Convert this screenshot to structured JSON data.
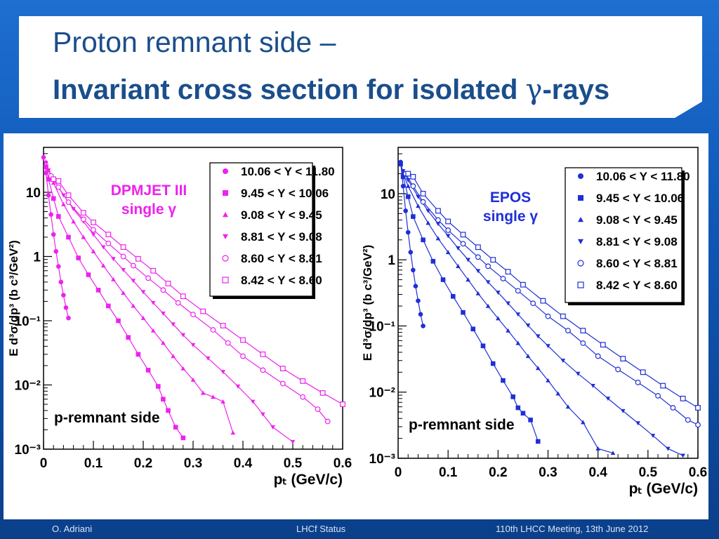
{
  "slide": {
    "title_line1": "Proton remnant side –",
    "title_line2_prefix": "Invariant cross section for isolated ",
    "title_line2_symbol": "γ",
    "title_line2_suffix": "-rays"
  },
  "footer": {
    "author": "O. Adriani",
    "center": "LHCf Status",
    "right": "110th LHCC Meeting, 13th June 2012"
  },
  "chart_data": [
    {
      "type": "scatter",
      "model_label": "DPMJET III",
      "model_sub": "single γ",
      "color": "#ee22ee",
      "annotation": "p-remnant side",
      "ylabel": "E d³σ/dp³ (b c³/GeV²)",
      "xlabel": "pₜ (GeV/c)",
      "xlim": [
        0,
        0.6
      ],
      "ylim": [
        0.001,
        50
      ],
      "yscale": "log",
      "x_ticks": [
        "0",
        "0.1",
        "0.2",
        "0.3",
        "0.4",
        "0.5",
        "0.6"
      ],
      "y_ticks": [
        "10⁻³",
        "10⁻²",
        "10⁻¹",
        "1",
        "10"
      ],
      "legend": [
        "10.06 < Y < 11.80",
        "9.45 < Y < 10.06",
        "9.08 < Y < 9.45",
        "8.81 < Y < 9.08",
        "8.60 < Y < 8.81",
        "8.42 < Y < 8.60"
      ],
      "series": [
        {
          "name": "10.06 < Y < 11.80",
          "marker": "circle",
          "x": [
            0.0,
            0.005,
            0.01,
            0.015,
            0.02,
            0.025,
            0.03,
            0.035,
            0.04,
            0.045,
            0.05
          ],
          "y": [
            35,
            20,
            9,
            4.5,
            2.2,
            1.2,
            0.7,
            0.4,
            0.25,
            0.16,
            0.11
          ]
        },
        {
          "name": "9.45 < Y < 10.06",
          "marker": "square",
          "x": [
            0.005,
            0.01,
            0.02,
            0.03,
            0.05,
            0.07,
            0.09,
            0.11,
            0.13,
            0.15,
            0.17,
            0.19,
            0.21,
            0.23,
            0.24,
            0.25,
            0.265,
            0.28
          ],
          "y": [
            25,
            16,
            8,
            4.2,
            2.0,
            0.95,
            0.52,
            0.3,
            0.17,
            0.1,
            0.055,
            0.03,
            0.017,
            0.0095,
            0.006,
            0.004,
            0.0022,
            0.0015
          ]
        },
        {
          "name": "9.08 < Y < 9.45",
          "marker": "triangle-up",
          "x": [
            0.005,
            0.01,
            0.02,
            0.04,
            0.06,
            0.08,
            0.1,
            0.12,
            0.14,
            0.16,
            0.18,
            0.2,
            0.22,
            0.24,
            0.26,
            0.28,
            0.3,
            0.32,
            0.34,
            0.36,
            0.38
          ],
          "y": [
            30,
            22,
            14,
            6.5,
            3.5,
            2.0,
            1.2,
            0.72,
            0.44,
            0.27,
            0.17,
            0.11,
            0.07,
            0.045,
            0.028,
            0.018,
            0.012,
            0.0075,
            0.0065,
            0.0055,
            0.0018
          ]
        },
        {
          "name": "8.81 < Y < 9.08",
          "marker": "triangle-down",
          "x": [
            0.01,
            0.02,
            0.04,
            0.06,
            0.08,
            0.1,
            0.12,
            0.14,
            0.16,
            0.18,
            0.2,
            0.22,
            0.24,
            0.26,
            0.28,
            0.3,
            0.33,
            0.36,
            0.39,
            0.42,
            0.44,
            0.46,
            0.5
          ],
          "y": [
            22,
            16,
            9,
            5.5,
            3.5,
            2.2,
            1.4,
            0.92,
            0.62,
            0.42,
            0.28,
            0.19,
            0.13,
            0.088,
            0.06,
            0.042,
            0.026,
            0.016,
            0.0095,
            0.0055,
            0.0035,
            0.0022,
            0.0013
          ]
        },
        {
          "name": "8.60 < Y < 8.81",
          "marker": "circle-open",
          "x": [
            0.015,
            0.03,
            0.05,
            0.08,
            0.1,
            0.13,
            0.16,
            0.18,
            0.21,
            0.24,
            0.27,
            0.3,
            0.34,
            0.37,
            0.4,
            0.44,
            0.48,
            0.52,
            0.55,
            0.57
          ],
          "y": [
            18,
            12,
            7,
            3.8,
            2.6,
            1.6,
            1.0,
            0.72,
            0.46,
            0.3,
            0.19,
            0.125,
            0.072,
            0.045,
            0.028,
            0.017,
            0.0105,
            0.0065,
            0.0042,
            0.0027
          ]
        },
        {
          "name": "8.42 < Y < 8.60",
          "marker": "square-open",
          "x": [
            0.02,
            0.03,
            0.05,
            0.08,
            0.1,
            0.13,
            0.16,
            0.19,
            0.22,
            0.25,
            0.28,
            0.32,
            0.36,
            0.4,
            0.44,
            0.48,
            0.52,
            0.56,
            0.6
          ],
          "y": [
            16,
            15,
            9,
            4.8,
            3.4,
            2.2,
            1.4,
            0.92,
            0.6,
            0.38,
            0.24,
            0.14,
            0.084,
            0.05,
            0.03,
            0.018,
            0.0115,
            0.0075,
            0.005
          ]
        }
      ]
    },
    {
      "type": "scatter",
      "model_label": "EPOS",
      "model_sub": "single γ",
      "color": "#1f2fd6",
      "annotation": "p-remnant side",
      "ylabel": "E d³σ/dp³ (b c³/GeV²)",
      "xlabel": "pₜ (GeV/c)",
      "xlim": [
        0,
        0.6
      ],
      "ylim": [
        0.001,
        50
      ],
      "yscale": "log",
      "x_ticks": [
        "0",
        "0.1",
        "0.2",
        "0.3",
        "0.4",
        "0.5",
        "0.6"
      ],
      "y_ticks": [
        "10⁻³",
        "10⁻²",
        "10⁻¹",
        "1",
        "10"
      ],
      "legend": [
        "10.06 < Y < 11.80",
        "9.45 < Y < 10.06",
        "9.08 < Y < 9.45",
        "8.81 < Y < 9.08",
        "8.60 < Y < 8.81",
        "8.42 < Y < 8.60"
      ],
      "series": [
        {
          "name": "10.06 < Y < 11.80",
          "marker": "circle",
          "x": [
            0.005,
            0.01,
            0.015,
            0.02,
            0.025,
            0.03,
            0.035,
            0.04,
            0.045,
            0.05
          ],
          "y": [
            30,
            13,
            5.5,
            2.6,
            1.3,
            0.7,
            0.4,
            0.24,
            0.15,
            0.1
          ]
        },
        {
          "name": "9.45 < Y < 10.06",
          "marker": "square",
          "x": [
            0.005,
            0.01,
            0.02,
            0.03,
            0.05,
            0.07,
            0.09,
            0.11,
            0.13,
            0.15,
            0.17,
            0.19,
            0.21,
            0.23,
            0.24,
            0.25,
            0.265,
            0.28
          ],
          "y": [
            28,
            18,
            9,
            4.5,
            2.0,
            0.95,
            0.5,
            0.28,
            0.16,
            0.09,
            0.05,
            0.027,
            0.015,
            0.0085,
            0.0058,
            0.0048,
            0.0038,
            0.0018
          ]
        },
        {
          "name": "9.08 < Y < 9.45",
          "marker": "triangle-up",
          "x": [
            0.005,
            0.01,
            0.02,
            0.04,
            0.06,
            0.08,
            0.1,
            0.12,
            0.14,
            0.16,
            0.18,
            0.2,
            0.22,
            0.24,
            0.26,
            0.28,
            0.3,
            0.32,
            0.34,
            0.37,
            0.4,
            0.43
          ],
          "y": [
            30,
            20,
            13,
            6.5,
            3.6,
            2.1,
            1.3,
            0.8,
            0.5,
            0.31,
            0.2,
            0.13,
            0.085,
            0.055,
            0.035,
            0.023,
            0.015,
            0.0095,
            0.006,
            0.0035,
            0.0014,
            0.0012
          ]
        },
        {
          "name": "8.81 < Y < 9.08",
          "marker": "triangle-down",
          "x": [
            0.01,
            0.02,
            0.04,
            0.06,
            0.08,
            0.1,
            0.12,
            0.14,
            0.16,
            0.18,
            0.2,
            0.22,
            0.24,
            0.26,
            0.28,
            0.3,
            0.33,
            0.36,
            0.39,
            0.42,
            0.45,
            0.48,
            0.51,
            0.54,
            0.57
          ],
          "y": [
            22,
            16,
            9,
            5.5,
            3.5,
            2.3,
            1.5,
            1.0,
            0.68,
            0.46,
            0.32,
            0.22,
            0.15,
            0.102,
            0.07,
            0.05,
            0.03,
            0.019,
            0.0125,
            0.008,
            0.0052,
            0.0034,
            0.0022,
            0.0014,
            0.0011
          ]
        },
        {
          "name": "8.60 < Y < 8.81",
          "marker": "circle-open",
          "x": [
            0.015,
            0.03,
            0.05,
            0.08,
            0.1,
            0.13,
            0.16,
            0.18,
            0.21,
            0.24,
            0.27,
            0.3,
            0.34,
            0.37,
            0.4,
            0.44,
            0.48,
            0.52,
            0.55,
            0.58,
            0.6
          ],
          "y": [
            20,
            13,
            7.5,
            4.0,
            2.8,
            1.75,
            1.1,
            0.8,
            0.52,
            0.34,
            0.22,
            0.14,
            0.085,
            0.055,
            0.035,
            0.022,
            0.014,
            0.0088,
            0.0058,
            0.0038,
            0.0032
          ]
        },
        {
          "name": "8.42 < Y < 8.60",
          "marker": "square-open",
          "x": [
            0.02,
            0.03,
            0.05,
            0.08,
            0.1,
            0.13,
            0.16,
            0.19,
            0.22,
            0.25,
            0.29,
            0.33,
            0.37,
            0.41,
            0.45,
            0.49,
            0.53,
            0.57,
            0.6
          ],
          "y": [
            20,
            18,
            10,
            5.5,
            3.8,
            2.4,
            1.55,
            1.0,
            0.66,
            0.42,
            0.24,
            0.14,
            0.085,
            0.052,
            0.032,
            0.02,
            0.0125,
            0.008,
            0.0058
          ]
        }
      ]
    }
  ]
}
